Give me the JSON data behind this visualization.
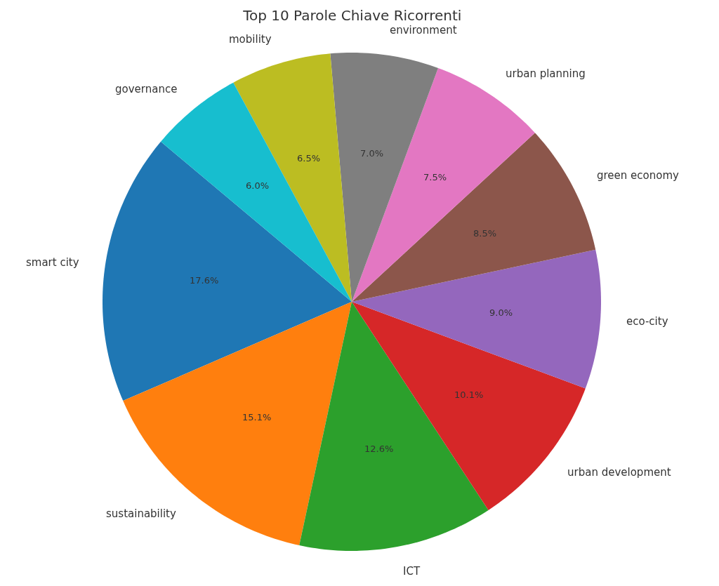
{
  "chart_data": {
    "type": "pie",
    "title": "Top 10 Parole Chiave Ricorrenti",
    "categories": [
      "smart city",
      "sustainability",
      "ICT",
      "urban development",
      "eco-city",
      "green economy",
      "urban planning",
      "environment",
      "mobility",
      "governance"
    ],
    "values": [
      17.6,
      15.1,
      12.6,
      10.1,
      9.0,
      8.5,
      7.5,
      7.0,
      6.5,
      6.0
    ],
    "value_labels": [
      "17.6%",
      "15.1%",
      "12.6%",
      "10.1%",
      "9.0%",
      "8.5%",
      "7.5%",
      "7.0%",
      "6.5%",
      "6.0%"
    ],
    "colors": [
      "#1f77b4",
      "#ff7f0e",
      "#2ca02c",
      "#d62728",
      "#9467bd",
      "#8c564b",
      "#e377c2",
      "#7f7f7f",
      "#bcbd22",
      "#17becf"
    ],
    "legend": false
  }
}
